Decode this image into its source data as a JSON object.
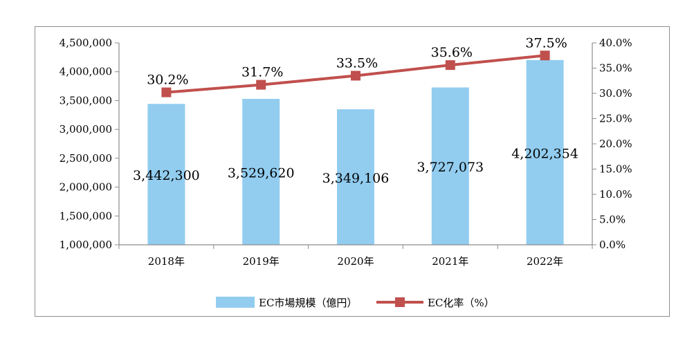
{
  "chart_data": {
    "type": "bar+line",
    "categories": [
      "2018年",
      "2019年",
      "2020年",
      "2021年",
      "2022年"
    ],
    "series": [
      {
        "name": "EC市場規模（億円）",
        "type": "bar",
        "axis": "left",
        "color": "#92cdf0",
        "values": [
          3442300,
          3529620,
          3349106,
          3727073,
          4202354
        ],
        "labels": [
          "3,442,300",
          "3,529,620",
          "3,349,106",
          "3,727,073",
          "4,202,354"
        ]
      },
      {
        "name": "EC化率（%）",
        "type": "line",
        "axis": "right",
        "color": "#c0504d",
        "values": [
          30.2,
          31.7,
          33.5,
          35.6,
          37.5
        ],
        "labels": [
          "30.2%",
          "31.7%",
          "33.5%",
          "35.6%",
          "37.5%"
        ]
      }
    ],
    "left_axis": {
      "ylim": [
        1000000,
        4500000
      ],
      "ticks": [
        "1,000,000",
        "1,500,000",
        "2,000,000",
        "2,500,000",
        "3,000,000",
        "3,500,000",
        "4,000,000",
        "4,500,000"
      ]
    },
    "right_axis": {
      "ylim": [
        0,
        40
      ],
      "ticks": [
        "0.0%",
        "5.0%",
        "10.0%",
        "15.0%",
        "20.0%",
        "25.0%",
        "30.0%",
        "35.0%",
        "40.0%"
      ]
    },
    "grid": false,
    "legend_position": "bottom"
  }
}
